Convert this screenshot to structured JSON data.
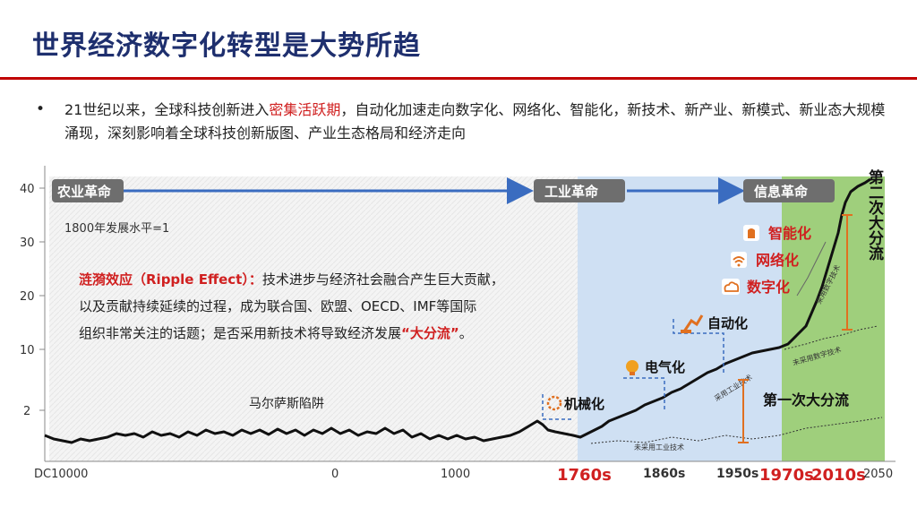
{
  "title": "世界经济数字化转型是大势所趋",
  "paragraph": {
    "bullet": "•",
    "pre": "21世纪以来，全球科技创新进入",
    "highlight": "密集活跃期",
    "post": "，自动化加速走向数字化、网络化、智能化，新技术、新产业、新模式、新业态大规模涌现，深刻影响着全球科技创新版图、产业生态格局和经济走向"
  },
  "chart": {
    "y_ticks": [
      "40",
      "30",
      "20",
      "10",
      "2"
    ],
    "x_ticks": [
      "DC10000",
      "0",
      "1000",
      "1760s",
      "1860s",
      "1950s",
      "1970s",
      "2010s",
      "2050"
    ],
    "eras": [
      "农业革命",
      "工业革命",
      "信息革命"
    ],
    "baseline_note": "1800年发展水平=1",
    "ripple": {
      "title": "涟漪效应（Ripple Effect）：",
      "line1_rest": "技术进步与经济社会融合产生巨大贡献，",
      "line2": "以及贡献持续延续的过程，成为联合国、欧盟、OECD、IMF等国际",
      "line3_pre": "组织非常关注的话题；是否采用新技术将导致经济发展",
      "line3_quote": "“大分流”",
      "line3_end": "。"
    },
    "malthus": "马尔萨斯陷阱",
    "milestones": {
      "mechanization": "机械化",
      "electrification": "电气化",
      "automation": "自动化",
      "digitalization": "数字化",
      "networking": "网络化",
      "intelligence": "智能化"
    },
    "divergence1": "第一次大分流",
    "divergence2": "第二次大分流",
    "curve_labels": {
      "adopt_industrial": "采用工业技术",
      "not_adopt_industrial": "未采用工业技术",
      "adopt_digital": "采用数字技术",
      "not_adopt_digital": "未采用数字技术"
    },
    "colors": {
      "arrow_blue": "#3a6cc0",
      "era_box": "#6e6e6e",
      "industrial_bg": "#cfe0f3",
      "info_bg": "#9fcf7c",
      "highlight_red": "#d02020",
      "bracket_orange": "#e07020"
    }
  }
}
